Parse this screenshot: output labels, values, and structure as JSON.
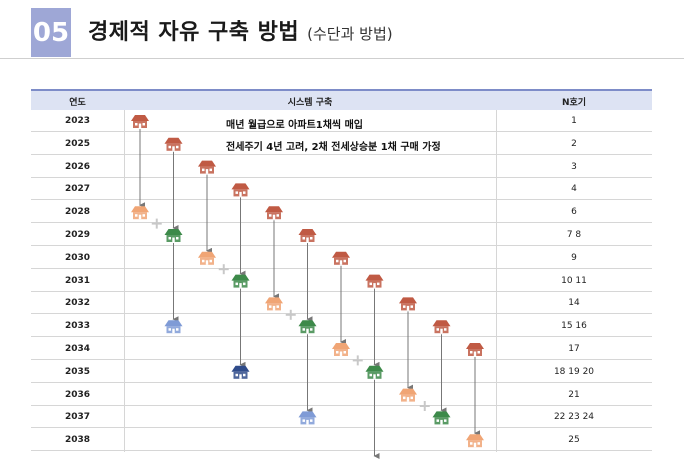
{
  "section": {
    "number": "05",
    "title": "경제적 자유 구축 방법",
    "subtitle": "(수단과 방법)"
  },
  "table": {
    "headers": {
      "year": "연도",
      "system": "시스템 구축",
      "count": "N호기"
    },
    "rows": [
      {
        "year": "2023",
        "count": "1"
      },
      {
        "year": "2025",
        "count": "2"
      },
      {
        "year": "2026",
        "count": "3"
      },
      {
        "year": "2027",
        "count": "4"
      },
      {
        "year": "2028",
        "count": "6"
      },
      {
        "year": "2029",
        "count": "7 8"
      },
      {
        "year": "2030",
        "count": "9"
      },
      {
        "year": "2031",
        "count": "10 11"
      },
      {
        "year": "2032",
        "count": "14"
      },
      {
        "year": "2033",
        "count": "15 16"
      },
      {
        "year": "2034",
        "count": "17"
      },
      {
        "year": "2035",
        "count": "18 19 20"
      },
      {
        "year": "2036",
        "count": "21"
      },
      {
        "year": "2037",
        "count": "22 23 24"
      },
      {
        "year": "2038",
        "count": "25"
      }
    ],
    "notes": [
      "매년 월급으로 아파트1채씩 매입",
      "전세주기 4년 고려, 2채 전세상승분 1채 구매 가정"
    ]
  },
  "diagram": {
    "colors": {
      "red": "#c05a44",
      "orange": "#f0a575",
      "green": "#3d8a4a",
      "blue": "#7f9bd6",
      "navy": "#2f4b8a",
      "arrow": "#777777",
      "plus": "#c8c8c8"
    },
    "houses": [
      {
        "row": 0,
        "col": 0,
        "color": "red"
      },
      {
        "row": 1,
        "col": 1,
        "color": "red"
      },
      {
        "row": 2,
        "col": 2,
        "color": "red"
      },
      {
        "row": 3,
        "col": 3,
        "color": "red"
      },
      {
        "row": 4,
        "col": 4,
        "color": "red"
      },
      {
        "row": 5,
        "col": 5,
        "color": "red"
      },
      {
        "row": 6,
        "col": 6,
        "color": "red"
      },
      {
        "row": 7,
        "col": 7,
        "color": "red"
      },
      {
        "row": 8,
        "col": 8,
        "color": "red"
      },
      {
        "row": 9,
        "col": 9,
        "color": "red"
      },
      {
        "row": 10,
        "col": 10,
        "color": "red"
      },
      {
        "row": 4,
        "col": 0,
        "color": "orange"
      },
      {
        "row": 5,
        "col": 1,
        "color": "green"
      },
      {
        "row": 6,
        "col": 2,
        "color": "orange"
      },
      {
        "row": 7,
        "col": 3,
        "color": "green"
      },
      {
        "row": 8,
        "col": 4,
        "color": "orange"
      },
      {
        "row": 9,
        "col": 5,
        "color": "green"
      },
      {
        "row": 10,
        "col": 6,
        "color": "orange"
      },
      {
        "row": 11,
        "col": 7,
        "color": "green"
      },
      {
        "row": 12,
        "col": 8,
        "color": "orange"
      },
      {
        "row": 13,
        "col": 9,
        "color": "green"
      },
      {
        "row": 14,
        "col": 10,
        "color": "orange"
      },
      {
        "row": 9,
        "col": 1,
        "color": "blue"
      },
      {
        "row": 11,
        "col": 3,
        "color": "navy"
      },
      {
        "row": 13,
        "col": 5,
        "color": "blue"
      }
    ],
    "arrows": [
      {
        "col": 0,
        "from": 0,
        "to": 4
      },
      {
        "col": 1,
        "from": 1,
        "to": 5
      },
      {
        "col": 2,
        "from": 2,
        "to": 6
      },
      {
        "col": 3,
        "from": 3,
        "to": 7
      },
      {
        "col": 4,
        "from": 4,
        "to": 8
      },
      {
        "col": 5,
        "from": 5,
        "to": 9
      },
      {
        "col": 6,
        "from": 6,
        "to": 10
      },
      {
        "col": 7,
        "from": 7,
        "to": 11
      },
      {
        "col": 8,
        "from": 8,
        "to": 12
      },
      {
        "col": 9,
        "from": 9,
        "to": 13
      },
      {
        "col": 10,
        "from": 10,
        "to": 14
      },
      {
        "col": 1,
        "from": 5,
        "to": 9
      },
      {
        "col": 3,
        "from": 7,
        "to": 11
      },
      {
        "col": 5,
        "from": 9,
        "to": 13
      },
      {
        "col": 7,
        "from": 11,
        "to": 15
      }
    ],
    "pluses": [
      {
        "row": 4.5,
        "col": 0.5
      },
      {
        "row": 6.5,
        "col": 2.5
      },
      {
        "row": 8.5,
        "col": 4.5
      },
      {
        "row": 10.5,
        "col": 6.5
      },
      {
        "row": 12.5,
        "col": 8.5
      }
    ]
  }
}
